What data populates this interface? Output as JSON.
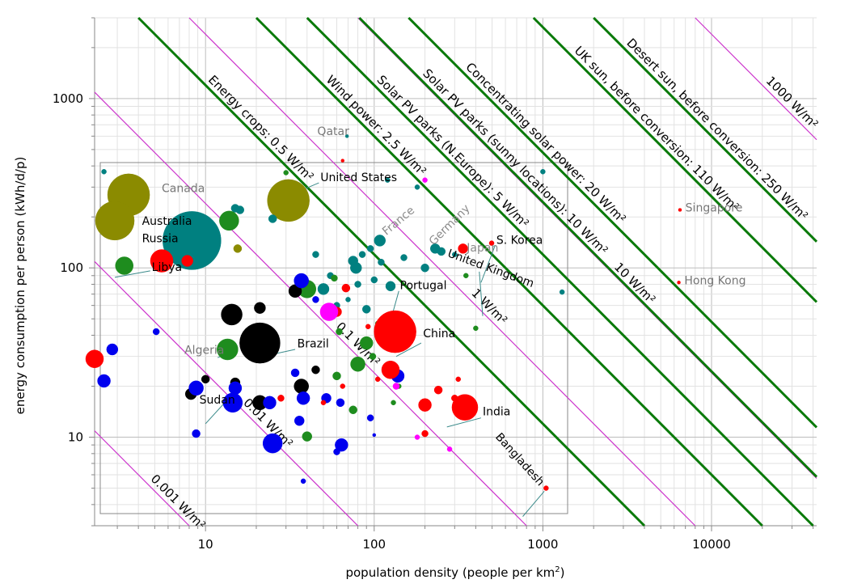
{
  "chart_data": {
    "type": "scatter",
    "x_scale": "log",
    "y_scale": "log",
    "xlim": [
      2.2,
      42000
    ],
    "ylim": [
      3.0,
      3000
    ],
    "grid": true,
    "xlabel_pre": "population density (people per km",
    "xlabel_sup": "2",
    "xlabel_post": ")",
    "ylabel": "energy consumption per person (kWh/d/p)",
    "x_ticks": [
      {
        "v": 10,
        "label": "10"
      },
      {
        "v": 100,
        "label": "100"
      },
      {
        "v": 1000,
        "label": "1000"
      },
      {
        "v": 10000,
        "label": "10000"
      }
    ],
    "y_ticks": [
      {
        "v": 10,
        "label": "10"
      },
      {
        "v": 100,
        "label": "100"
      },
      {
        "v": 1000,
        "label": "1000"
      }
    ],
    "power_lines": [
      {
        "k": 0.001,
        "style": "magenta",
        "label": "0.001 W/m²"
      },
      {
        "k": 0.01,
        "style": "magenta",
        "label": "0.01 W/m²"
      },
      {
        "k": 0.1,
        "style": "magenta",
        "label": "0.1 W/m²"
      },
      {
        "k": 1,
        "style": "magenta",
        "label": "1 W/m²"
      },
      {
        "k": 10,
        "style": "magenta",
        "label": "10 W/m²"
      },
      {
        "k": 1000,
        "style": "magenta",
        "label": "1000 W/m²"
      },
      {
        "k": 0.5,
        "style": "green",
        "label": "Energy crops: 0.5 W/m²"
      },
      {
        "k": 2.5,
        "style": "green",
        "label": "Wind power: 2.5 W/m²"
      },
      {
        "k": 5,
        "style": "green",
        "label": "Solar PV parks (N.Europe): 5 W/m²"
      },
      {
        "k": 10.2,
        "style": "green",
        "label": "Solar PV parks (sunny locations): 10 W/m²"
      },
      {
        "k": 20,
        "style": "green",
        "label": "Concentrating solar power: 20 W/m²"
      },
      {
        "k": 110,
        "style": "green",
        "label": "UK sun, before conversion: 110 W/m²"
      },
      {
        "k": 250,
        "style": "green",
        "label": "Desert sun, before conversion: 250 W/m²"
      }
    ],
    "series": [
      {
        "color": "#8b8b00",
        "points": [
          {
            "x": 3.5,
            "y": 270,
            "s": 26,
            "label": "Canada"
          },
          {
            "x": 2.9,
            "y": 190,
            "s": 24,
            "label": "Australia"
          },
          {
            "x": 31,
            "y": 250,
            "s": 26,
            "label": "United States"
          },
          {
            "x": 15.5,
            "y": 130,
            "s": 5
          }
        ]
      },
      {
        "color": "#008080",
        "points": [
          {
            "x": 8.3,
            "y": 145,
            "s": 36,
            "label": "Russia"
          },
          {
            "x": 69,
            "y": 600,
            "s": 2,
            "label": "Qatar"
          },
          {
            "x": 108,
            "y": 145,
            "s": 7,
            "label": "France"
          },
          {
            "x": 250,
            "y": 125,
            "s": 5,
            "label": "Germany"
          },
          {
            "x": 125,
            "y": 78,
            "s": 6,
            "label": "Portugal"
          },
          {
            "x": 230,
            "y": 130,
            "s": 6
          },
          {
            "x": 75,
            "y": 110,
            "s": 6
          },
          {
            "x": 78,
            "y": 100,
            "s": 7
          },
          {
            "x": 85,
            "y": 120,
            "s": 4
          },
          {
            "x": 95,
            "y": 130,
            "s": 4
          },
          {
            "x": 120,
            "y": 330,
            "s": 3
          },
          {
            "x": 180,
            "y": 300,
            "s": 3
          },
          {
            "x": 150,
            "y": 115,
            "s": 4
          },
          {
            "x": 90,
            "y": 57,
            "s": 5
          },
          {
            "x": 100,
            "y": 85,
            "s": 4
          },
          {
            "x": 110,
            "y": 108,
            "s": 4
          },
          {
            "x": 200,
            "y": 100,
            "s": 5
          },
          {
            "x": 25,
            "y": 195,
            "s": 5
          },
          {
            "x": 16,
            "y": 220,
            "s": 5
          },
          {
            "x": 15,
            "y": 225,
            "s": 5
          },
          {
            "x": 2.5,
            "y": 370,
            "s": 3
          },
          {
            "x": 50,
            "y": 75,
            "s": 7
          },
          {
            "x": 60,
            "y": 60,
            "s": 4
          },
          {
            "x": 70,
            "y": 65,
            "s": 3
          },
          {
            "x": 1000,
            "y": 370,
            "s": 3
          },
          {
            "x": 1300,
            "y": 72,
            "s": 3
          },
          {
            "x": 55,
            "y": 90,
            "s": 4
          },
          {
            "x": 45,
            "y": 120,
            "s": 4
          },
          {
            "x": 80,
            "y": 80,
            "s": 4
          },
          {
            "x": 300,
            "y": 120,
            "s": 3
          }
        ]
      },
      {
        "color": "#1e8c1e",
        "points": [
          {
            "x": 3.3,
            "y": 103,
            "s": 11,
            "label": "Libya"
          },
          {
            "x": 13.5,
            "y": 33,
            "s": 13,
            "label": "Algeria"
          },
          {
            "x": 40,
            "y": 75,
            "s": 11
          },
          {
            "x": 13.8,
            "y": 190,
            "s": 12
          },
          {
            "x": 80,
            "y": 27,
            "s": 9
          },
          {
            "x": 90,
            "y": 36,
            "s": 8
          },
          {
            "x": 40,
            "y": 10.1,
            "s": 6
          },
          {
            "x": 75,
            "y": 14.5,
            "s": 5
          },
          {
            "x": 60,
            "y": 23,
            "s": 5
          },
          {
            "x": 62,
            "y": 42,
            "s": 4
          },
          {
            "x": 105,
            "y": 47,
            "s": 3
          },
          {
            "x": 130,
            "y": 16,
            "s": 3
          },
          {
            "x": 30,
            "y": 365,
            "s": 3
          },
          {
            "x": 58,
            "y": 87,
            "s": 4
          },
          {
            "x": 400,
            "y": 44,
            "s": 3
          },
          {
            "x": 350,
            "y": 90,
            "s": 3
          },
          {
            "x": 140,
            "y": 20,
            "s": 3
          },
          {
            "x": 98,
            "y": 30,
            "s": 4
          }
        ]
      },
      {
        "color": "#000000",
        "points": [
          {
            "x": 21,
            "y": 36,
            "s": 25,
            "label": "Brazil"
          },
          {
            "x": 14.3,
            "y": 53,
            "s": 13
          },
          {
            "x": 34,
            "y": 73,
            "s": 8
          },
          {
            "x": 21,
            "y": 58,
            "s": 7
          },
          {
            "x": 8.2,
            "y": 18,
            "s": 7
          },
          {
            "x": 37,
            "y": 20,
            "s": 9
          },
          {
            "x": 21,
            "y": 16,
            "s": 9
          },
          {
            "x": 15,
            "y": 21,
            "s": 6
          },
          {
            "x": 45,
            "y": 25,
            "s": 5
          },
          {
            "x": 10,
            "y": 22,
            "s": 5
          }
        ]
      },
      {
        "color": "#0000ee",
        "points": [
          {
            "x": 14.5,
            "y": 16,
            "s": 12,
            "label": "Sudan"
          },
          {
            "x": 25,
            "y": 9.2,
            "s": 12
          },
          {
            "x": 2.3,
            "y": 29,
            "s": 1
          },
          {
            "x": 2.5,
            "y": 21.5,
            "s": 8
          },
          {
            "x": 2.8,
            "y": 33,
            "s": 7
          },
          {
            "x": 8.8,
            "y": 19.5,
            "s": 9
          },
          {
            "x": 15,
            "y": 19.5,
            "s": 8
          },
          {
            "x": 24,
            "y": 16,
            "s": 8
          },
          {
            "x": 38,
            "y": 17,
            "s": 8
          },
          {
            "x": 36,
            "y": 12.5,
            "s": 6
          },
          {
            "x": 52,
            "y": 17,
            "s": 6
          },
          {
            "x": 64,
            "y": 9,
            "s": 8
          },
          {
            "x": 63,
            "y": 16,
            "s": 5
          },
          {
            "x": 8.8,
            "y": 10.5,
            "s": 5
          },
          {
            "x": 5.1,
            "y": 42,
            "s": 4
          },
          {
            "x": 37,
            "y": 84,
            "s": 9
          },
          {
            "x": 60,
            "y": 8.2,
            "s": 4
          },
          {
            "x": 38,
            "y": 5.5,
            "s": 3
          },
          {
            "x": 138,
            "y": 23,
            "s": 8
          },
          {
            "x": 95,
            "y": 13,
            "s": 4
          },
          {
            "x": 45,
            "y": 65,
            "s": 4
          },
          {
            "x": 34,
            "y": 24,
            "s": 5
          },
          {
            "x": 100,
            "y": 10.3,
            "s": 2
          }
        ]
      },
      {
        "color": "#ff0000",
        "points": [
          {
            "x": 133,
            "y": 42,
            "s": 26,
            "label": "China"
          },
          {
            "x": 345,
            "y": 15,
            "s": 16,
            "label": "India"
          },
          {
            "x": 497,
            "y": 140,
            "s": 3,
            "label": "S. Korea"
          },
          {
            "x": 336,
            "y": 130,
            "s": 6,
            "label": "Japan"
          },
          {
            "x": 1045,
            "y": 5,
            "s": 3,
            "label": "Bangladesh"
          },
          {
            "x": 6500,
            "y": 220,
            "s": 2,
            "label": "Singapore"
          },
          {
            "x": 6400,
            "y": 82,
            "s": 2,
            "label": "Hong Kong"
          },
          {
            "x": 5.5,
            "y": 110,
            "s": 14
          },
          {
            "x": 7.8,
            "y": 110,
            "s": 7
          },
          {
            "x": 125,
            "y": 25,
            "s": 11
          },
          {
            "x": 2.2,
            "y": 29,
            "s": 11
          },
          {
            "x": 200,
            "y": 15.5,
            "s": 8
          },
          {
            "x": 68,
            "y": 76,
            "s": 5
          },
          {
            "x": 60,
            "y": 55,
            "s": 6
          },
          {
            "x": 28,
            "y": 17,
            "s": 4
          },
          {
            "x": 50,
            "y": 16,
            "s": 3
          },
          {
            "x": 65,
            "y": 20,
            "s": 3
          },
          {
            "x": 92,
            "y": 45,
            "s": 3
          },
          {
            "x": 200,
            "y": 10.5,
            "s": 4
          },
          {
            "x": 240,
            "y": 19,
            "s": 5
          },
          {
            "x": 300,
            "y": 17,
            "s": 4
          },
          {
            "x": 315,
            "y": 22,
            "s": 3
          },
          {
            "x": 105,
            "y": 22,
            "s": 3
          },
          {
            "x": 65,
            "y": 430,
            "s": 2
          }
        ]
      },
      {
        "color": "#ff00ff",
        "points": [
          {
            "x": 54,
            "y": 55,
            "s": 11
          },
          {
            "x": 135,
            "y": 20,
            "s": 4
          },
          {
            "x": 180,
            "y": 10,
            "s": 3
          },
          {
            "x": 200,
            "y": 330,
            "s": 3
          },
          {
            "x": 280,
            "y": 8.5,
            "s": 3
          }
        ]
      }
    ],
    "country_labels": [
      {
        "text": "Canada",
        "x": 5.5,
        "y": 280,
        "color": "#777777"
      },
      {
        "text": "Australia",
        "x": 4.2,
        "y": 180,
        "color": "#000000",
        "leader": {
          "x1": 3.6,
          "y1": 178,
          "x2": 2.8,
          "y2": 160
        }
      },
      {
        "text": "Russia",
        "x": 4.2,
        "y": 142,
        "color": "#000000"
      },
      {
        "text": "Libya",
        "x": 4.8,
        "y": 96,
        "color": "#000000",
        "leader": {
          "x1": 4.7,
          "y1": 96,
          "x2": 2.9,
          "y2": 88
        }
      },
      {
        "text": "Qatar",
        "x": 46,
        "y": 608,
        "color": "#777777"
      },
      {
        "text": "United States",
        "x": 48,
        "y": 325,
        "color": "#000000",
        "leader": {
          "x1": 47,
          "y1": 318,
          "x2": 32,
          "y2": 270
        }
      },
      {
        "text": "France",
        "x": 118,
        "y": 155,
        "color": "#8b8b8b",
        "rot": -40
      },
      {
        "text": "Germany",
        "x": 225,
        "y": 135,
        "color": "#8b8b8b",
        "rot": -45
      },
      {
        "text": "Japan",
        "x": 354,
        "y": 125,
        "color": "#8b8b8b"
      },
      {
        "text": "S. Korea",
        "x": 530,
        "y": 139,
        "color": "#000000",
        "leader": {
          "x1": 520,
          "y1": 135,
          "x2": 430,
          "y2": 82
        }
      },
      {
        "text": "United Kingdom",
        "x": 270,
        "y": 117,
        "color": "#000000",
        "rot": 20,
        "leader": {
          "x1": 420,
          "y1": 95,
          "x2": 440,
          "y2": 52
        }
      },
      {
        "text": "Portugal",
        "x": 142,
        "y": 75,
        "color": "#000000",
        "leader": {
          "x1": 140,
          "y1": 73,
          "x2": 128,
          "y2": 53
        }
      },
      {
        "text": "China",
        "x": 195,
        "y": 39,
        "color": "#000000",
        "leader": {
          "x1": 190,
          "y1": 36,
          "x2": 135,
          "y2": 30
        }
      },
      {
        "text": "Brazil",
        "x": 35,
        "y": 34,
        "color": "#000000",
        "leader": {
          "x1": 34,
          "y1": 33,
          "x2": 22,
          "y2": 30
        }
      },
      {
        "text": "Algeria",
        "x": 7.5,
        "y": 31,
        "color": "#777777",
        "leader": {
          "x1": 12.3,
          "y1": 30,
          "x2": 11.8,
          "y2": 29.5
        }
      },
      {
        "text": "Sudan",
        "x": 9.2,
        "y": 15.8,
        "color": "#000000",
        "leader": {
          "x1": 13,
          "y1": 16,
          "x2": 10,
          "y2": 12
        }
      },
      {
        "text": "India",
        "x": 440,
        "y": 13.5,
        "color": "#000000",
        "leader": {
          "x1": 430,
          "y1": 13,
          "x2": 270,
          "y2": 11.5
        }
      },
      {
        "text": "Bangladesh",
        "x": 520,
        "y": 10,
        "color": "#000000",
        "rot": 48,
        "leader": {
          "x1": 1020,
          "y1": 4.8,
          "x2": 760,
          "y2": 3.4
        }
      },
      {
        "text": "Singapore",
        "x": 7000,
        "y": 215,
        "color": "#777777"
      },
      {
        "text": "Hong Kong",
        "x": 6900,
        "y": 80,
        "color": "#777777"
      }
    ]
  }
}
